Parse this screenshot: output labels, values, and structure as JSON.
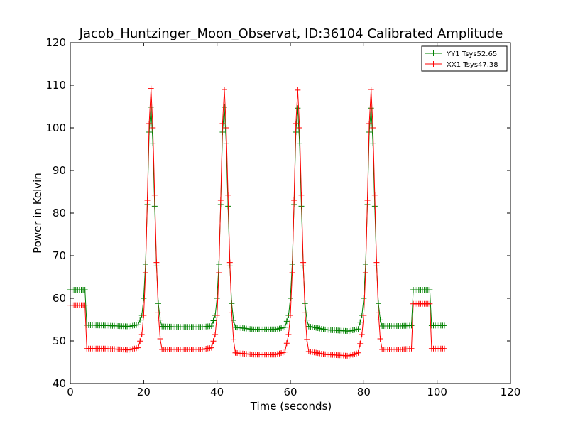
{
  "chart_data": {
    "type": "line",
    "title": "Jacob_Huntzinger_Moon_Observat, ID:36104 Calibrated Amplitude",
    "xlabel": "Time (seconds)",
    "ylabel": "Power in Kelvin",
    "xlim": [
      0,
      120
    ],
    "ylim": [
      40,
      120
    ],
    "xticks": [
      0,
      20,
      40,
      60,
      80,
      100,
      120
    ],
    "yticks": [
      40,
      50,
      60,
      70,
      80,
      90,
      100,
      110,
      120
    ],
    "grid": false,
    "legend_position": "top-right",
    "marker": "plus",
    "series": [
      {
        "name": "YY1 Tsys52.65",
        "color": "#008000",
        "points": [
          [
            0,
            62
          ],
          [
            4,
            62
          ],
          [
            4.1,
            53.7
          ],
          [
            10,
            53.6
          ],
          [
            16,
            53.4
          ],
          [
            18.5,
            53.8
          ],
          [
            19.5,
            56
          ],
          [
            20,
            60
          ],
          [
            20.5,
            68
          ],
          [
            21,
            82
          ],
          [
            21.5,
            99
          ],
          [
            21.9,
            105.8
          ],
          [
            22.3,
            102
          ],
          [
            22.8,
            88
          ],
          [
            23.3,
            72
          ],
          [
            23.8,
            61
          ],
          [
            24.3,
            55.5
          ],
          [
            25,
            53.4
          ],
          [
            30,
            53.3
          ],
          [
            36,
            53.3
          ],
          [
            38.5,
            53.5
          ],
          [
            39.5,
            56
          ],
          [
            40,
            60
          ],
          [
            40.5,
            68
          ],
          [
            41,
            82
          ],
          [
            41.5,
            99
          ],
          [
            41.9,
            105.8
          ],
          [
            42.3,
            102
          ],
          [
            42.8,
            88
          ],
          [
            43.3,
            72
          ],
          [
            43.8,
            61
          ],
          [
            44.3,
            55.5
          ],
          [
            45,
            53.2
          ],
          [
            50,
            52.7
          ],
          [
            56,
            52.7
          ],
          [
            58.5,
            53.2
          ],
          [
            59.5,
            56
          ],
          [
            60,
            60
          ],
          [
            60.5,
            68
          ],
          [
            61,
            82
          ],
          [
            61.5,
            99
          ],
          [
            61.9,
            105.5
          ],
          [
            62.3,
            102
          ],
          [
            62.8,
            88
          ],
          [
            63.3,
            72
          ],
          [
            63.8,
            61
          ],
          [
            64.3,
            55.5
          ],
          [
            65,
            53.4
          ],
          [
            70,
            52.6
          ],
          [
            76,
            52.3
          ],
          [
            78.5,
            52.8
          ],
          [
            79.5,
            56
          ],
          [
            80,
            60
          ],
          [
            80.5,
            68
          ],
          [
            81,
            82
          ],
          [
            81.5,
            99
          ],
          [
            81.9,
            105.5
          ],
          [
            82.3,
            102
          ],
          [
            82.8,
            88
          ],
          [
            83.3,
            72
          ],
          [
            83.8,
            61
          ],
          [
            84.3,
            55.5
          ],
          [
            85,
            53.5
          ],
          [
            90,
            53.5
          ],
          [
            93,
            53.6
          ],
          [
            93.1,
            62
          ],
          [
            98,
            62
          ],
          [
            98.1,
            53.6
          ],
          [
            102,
            53.6
          ]
        ]
      },
      {
        "name": "XX1 Tsys47.38",
        "color": "#ff0000",
        "points": [
          [
            0,
            58.4
          ],
          [
            4,
            58.4
          ],
          [
            4.1,
            48.2
          ],
          [
            10,
            48.2
          ],
          [
            16,
            47.9
          ],
          [
            18.5,
            48.4
          ],
          [
            19.5,
            51.5
          ],
          [
            20,
            56
          ],
          [
            20.5,
            66
          ],
          [
            21,
            83
          ],
          [
            21.5,
            101
          ],
          [
            21.9,
            110.3
          ],
          [
            22.3,
            106
          ],
          [
            22.8,
            91
          ],
          [
            23.3,
            74
          ],
          [
            23.8,
            60
          ],
          [
            24.3,
            51.5
          ],
          [
            25,
            48
          ],
          [
            30,
            48
          ],
          [
            36,
            48
          ],
          [
            38.5,
            48.4
          ],
          [
            39.5,
            51.5
          ],
          [
            40,
            56
          ],
          [
            40.5,
            66
          ],
          [
            41,
            83
          ],
          [
            41.5,
            101
          ],
          [
            41.9,
            110
          ],
          [
            42.3,
            106
          ],
          [
            42.8,
            91
          ],
          [
            43.3,
            74
          ],
          [
            43.8,
            60
          ],
          [
            44.3,
            51.5
          ],
          [
            45,
            47.2
          ],
          [
            50,
            46.8
          ],
          [
            56,
            46.8
          ],
          [
            58.5,
            47.4
          ],
          [
            59.5,
            51.5
          ],
          [
            60,
            56
          ],
          [
            60.5,
            66
          ],
          [
            61,
            83
          ],
          [
            61.5,
            101
          ],
          [
            61.9,
            109.8
          ],
          [
            62.3,
            106
          ],
          [
            62.8,
            91
          ],
          [
            63.3,
            74
          ],
          [
            63.8,
            60
          ],
          [
            64.3,
            51.5
          ],
          [
            65,
            47.5
          ],
          [
            70,
            46.8
          ],
          [
            76,
            46.5
          ],
          [
            78.5,
            47.2
          ],
          [
            79.5,
            51.5
          ],
          [
            80,
            56
          ],
          [
            80.5,
            66
          ],
          [
            81,
            83
          ],
          [
            81.5,
            101
          ],
          [
            81.9,
            110
          ],
          [
            82.3,
            106
          ],
          [
            82.8,
            91
          ],
          [
            83.3,
            74
          ],
          [
            83.8,
            60
          ],
          [
            84.3,
            51.5
          ],
          [
            85,
            48
          ],
          [
            90,
            48
          ],
          [
            93,
            48.2
          ],
          [
            93.1,
            58.7
          ],
          [
            98,
            58.7
          ],
          [
            98.1,
            48.2
          ],
          [
            102,
            48.2
          ]
        ]
      }
    ]
  }
}
